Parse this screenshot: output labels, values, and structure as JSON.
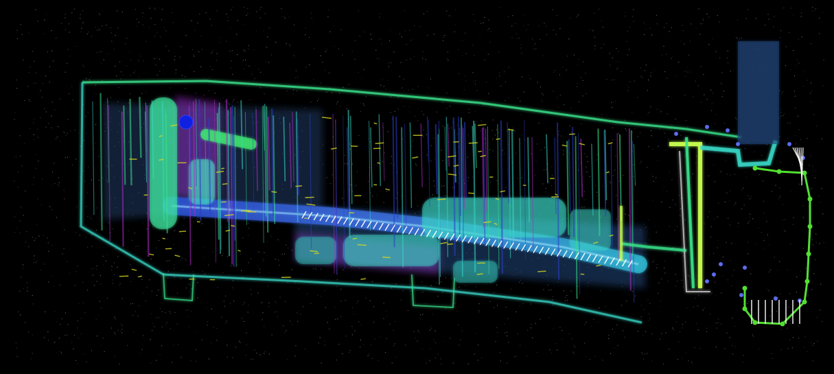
{
  "scene": {
    "description_visible_text": "",
    "colors": {
      "background": "#000000",
      "noise": "#9aa0a0",
      "wall_green": "#39e08a",
      "wall_cyan": "#38d9c8",
      "floor_blue": "#2a3fc8",
      "floor_magenta": "#b02cc8",
      "accent_yellow": "#d8d820",
      "trajectory_white": "#ffffff",
      "trajectory_green": "#52e032",
      "trajectory_blue_node": "#5c6cf0",
      "start_marker": "#1020e0"
    },
    "icons": {
      "start_marker": "blue-dot-icon"
    }
  }
}
